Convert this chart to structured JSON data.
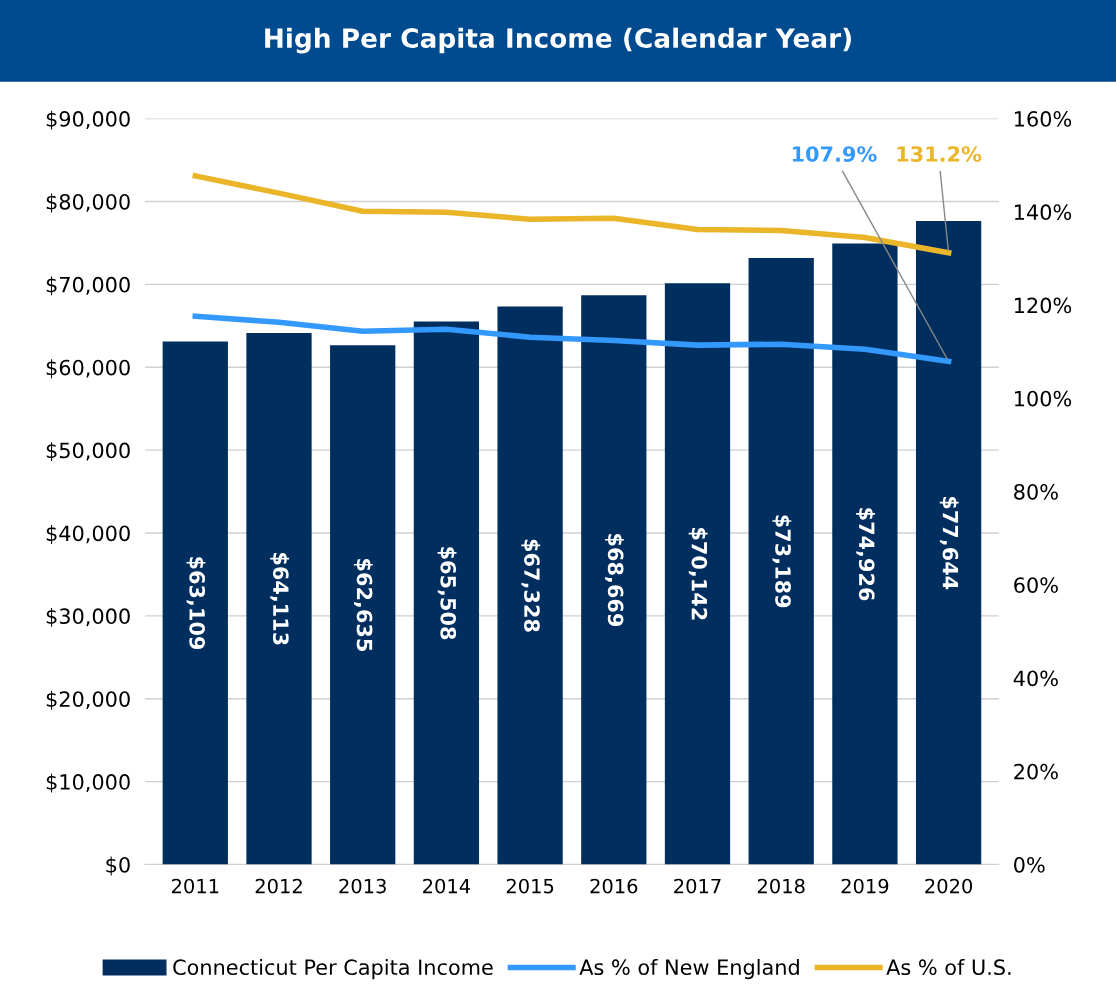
{
  "chart_data": {
    "type": "bar",
    "title": "High Per Capita Income (Calendar Year)",
    "categories": [
      "2011",
      "2012",
      "2013",
      "2014",
      "2015",
      "2016",
      "2017",
      "2018",
      "2019",
      "2020"
    ],
    "series": [
      {
        "name": "Connecticut Per Capita Income",
        "color": "#002f5f",
        "values": [
          63109,
          64113,
          62635,
          65508,
          67328,
          68669,
          70142,
          73189,
          74926,
          77644
        ],
        "value_labels": [
          "$63,109",
          "$64,113",
          "$62,635",
          "$65,508",
          "$67,328",
          "$68,669",
          "$70,142",
          "$73,189",
          "$74,926",
          "$77,644"
        ]
      },
      {
        "name": "As % of New England",
        "type": "line",
        "axis": "y2",
        "color": "#3399ff",
        "values": [
          117.6,
          116.3,
          114.4,
          114.8,
          113.1,
          112.4,
          111.4,
          111.6,
          110.5,
          107.9
        ],
        "value_labels": [
          null,
          null,
          null,
          null,
          null,
          null,
          null,
          null,
          null,
          "107.9%"
        ]
      },
      {
        "name": "As % of U.S.",
        "type": "line",
        "axis": "y2",
        "color": "#ebb52a",
        "values": [
          147.7,
          144.0,
          140.1,
          139.9,
          138.4,
          138.6,
          136.2,
          136.0,
          134.5,
          131.2
        ],
        "value_labels": [
          null,
          null,
          null,
          null,
          null,
          null,
          null,
          null,
          null,
          "131.2%"
        ]
      }
    ],
    "ylim": [
      0,
      90000
    ],
    "yticks": [
      {
        "value": 0,
        "label": "$0"
      },
      {
        "value": 10000,
        "label": "$10,000"
      },
      {
        "value": 20000,
        "label": "$20,000"
      },
      {
        "value": 30000,
        "label": "$30,000"
      },
      {
        "value": 40000,
        "label": "$40,000"
      },
      {
        "value": 50000,
        "label": "$50,000"
      },
      {
        "value": 60000,
        "label": "$60,000"
      },
      {
        "value": 70000,
        "label": "$70,000"
      },
      {
        "value": 80000,
        "label": "$80,000"
      },
      {
        "value": 90000,
        "label": "$90,000"
      }
    ],
    "y2lim": [
      0,
      160
    ],
    "y2ticks": [
      {
        "value": 0,
        "label": "0%"
      },
      {
        "value": 20,
        "label": "20%"
      },
      {
        "value": 40,
        "label": "40%"
      },
      {
        "value": 60,
        "label": "60%"
      },
      {
        "value": 80,
        "label": "80%"
      },
      {
        "value": 100,
        "label": "100%"
      },
      {
        "value": 120,
        "label": "120%"
      },
      {
        "value": 140,
        "label": "140%"
      },
      {
        "value": 160,
        "label": "160%"
      }
    ],
    "grid": "y",
    "legend": "bottom"
  }
}
